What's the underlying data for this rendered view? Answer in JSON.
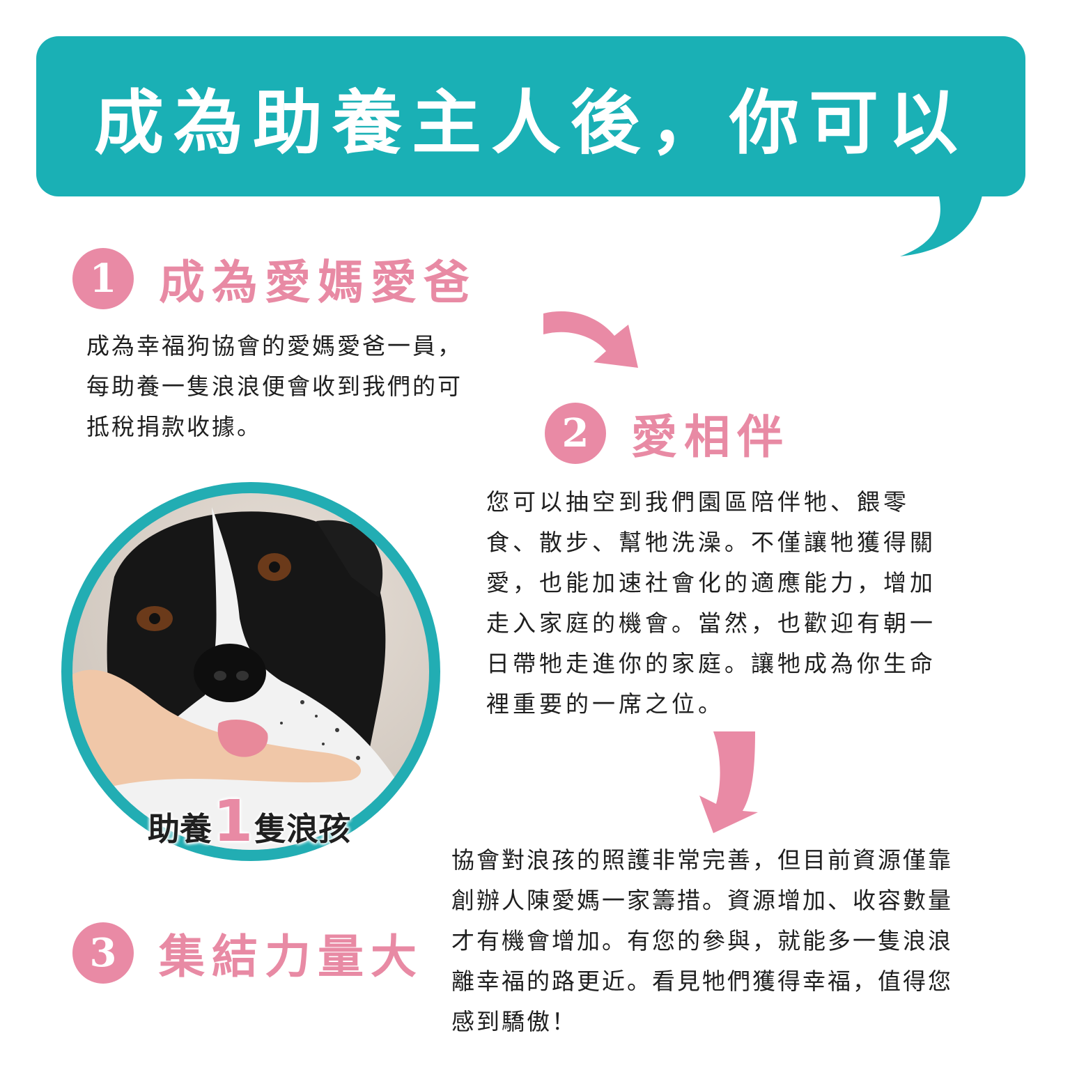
{
  "header": {
    "title": "成為助養主人後，你可以"
  },
  "steps": [
    {
      "number": "1",
      "title": "成為愛媽愛爸",
      "lines": [
        "成為幸福狗協會的愛媽愛爸一員，",
        "每助養一隻浪浪便會收到我們的可",
        "抵稅捐款收據。"
      ]
    },
    {
      "number": "2",
      "title": "愛相伴",
      "lines": [
        "您可以抽空到我們園區陪伴牠、餵零",
        "食、散步、幫牠洗澡。不僅讓牠獲得關",
        "愛，也能加速社會化的適應能力，增加",
        "走入家庭的機會。當然，也歡迎有朝一",
        "日帶牠走進你的家庭。讓牠成為你生命",
        "裡重要的一席之位。"
      ]
    },
    {
      "number": "3",
      "title": "集結力量大",
      "lines": [
        "協會對浪孩的照護非常完善，但目前資源僅靠",
        "創辦人陳愛媽一家籌措。資源增加、收容數量",
        "才有機會增加。有您的參與，就能多一隻浪浪",
        "離幸福的路更近。看見牠們獲得幸福，值得您",
        "感到驕傲！"
      ]
    }
  ],
  "photo": {
    "caption_before": "助養",
    "caption_number": "1",
    "caption_after": "隻浪孩"
  },
  "colors": {
    "teal": "#1ab0b5",
    "pink": "#e98aa5"
  }
}
